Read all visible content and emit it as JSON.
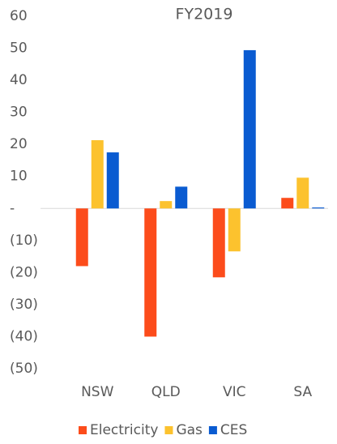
{
  "chart_data": {
    "type": "bar",
    "title": "FY2019",
    "categories": [
      "NSW",
      "QLD",
      "VIC",
      "SA"
    ],
    "series": [
      {
        "name": "Electricity",
        "color": "#fc4c1b",
        "values": [
          -18,
          -40,
          -21.5,
          3.3
        ]
      },
      {
        "name": "Gas",
        "color": "#fcc22e",
        "values": [
          21.3,
          2.3,
          -13.4,
          9.6
        ]
      },
      {
        "name": "CES",
        "color": "#0a5bd1",
        "values": [
          17.5,
          6.8,
          49.4,
          0.3
        ]
      }
    ],
    "ylim": [
      -50,
      60
    ],
    "yticks": [
      60,
      50,
      40,
      30,
      20,
      10,
      {
        "value": 0,
        "label": "-"
      },
      {
        "value": -10,
        "label": "(10)"
      },
      {
        "value": -20,
        "label": "(20)"
      },
      {
        "value": -30,
        "label": "(30)"
      },
      {
        "value": -40,
        "label": "(40)"
      },
      {
        "value": -50,
        "label": "(50)"
      }
    ],
    "grid": false,
    "legend": "bottom"
  }
}
